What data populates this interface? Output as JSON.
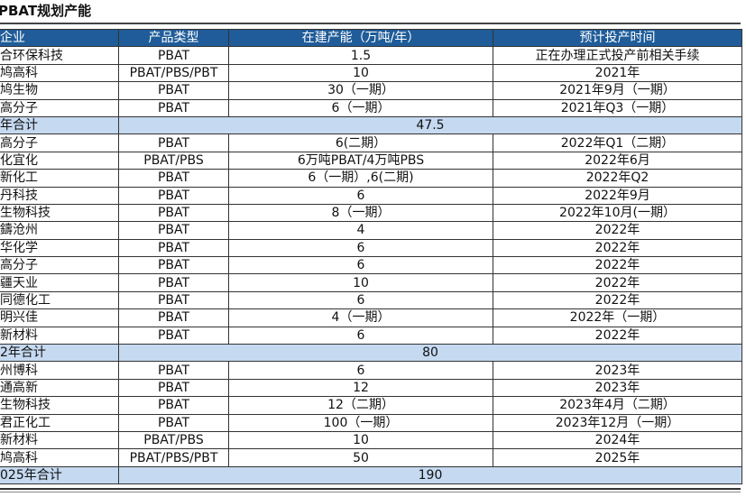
{
  "title": "PBAT规划产能",
  "headers": [
    "企业",
    "产品类型",
    "在建产能（万吨/年）",
    "预计投产时间"
  ],
  "rows": [
    {
      "company": "合环保科技",
      "type": "PBAT",
      "capacity": "1.5",
      "time": "正在办理正式投产前相关手续"
    },
    {
      "company": "鸠高科",
      "type": "PBAT/PBS/PBT",
      "capacity": "10",
      "time": "2021年"
    },
    {
      "company": "鸠生物",
      "type": "PBAT",
      "capacity": "30（一期）",
      "time": "2021年9月（一期）"
    },
    {
      "company": "高分子",
      "type": "PBAT",
      "capacity": "6（一期）",
      "time": "2021年Q3（一期）"
    },
    {
      "subtotal": true,
      "company": "年合计",
      "capacity": "47.5"
    },
    {
      "company": "高分子",
      "type": "PBAT",
      "capacity": "6(二期）",
      "time": "2022年Q1（二期）"
    },
    {
      "company": "化宜化",
      "type": "PBAT/PBS",
      "capacity": "6万吨PBAT/4万吨PBS",
      "time": "2022年6月"
    },
    {
      "company": "新化工",
      "type": "PBAT",
      "capacity": "6（一期）,6(二期)",
      "time": "2022年Q2"
    },
    {
      "company": "丹科技",
      "type": "PBAT",
      "capacity": "6",
      "time": "2022年9月"
    },
    {
      "company": "生物科技",
      "type": "PBAT",
      "capacity": "8（一期）",
      "time": "2022年10月(一期）"
    },
    {
      "company": "鑄沧州",
      "type": "PBAT",
      "capacity": "4",
      "time": "2022年"
    },
    {
      "company": "华化学",
      "type": "PBAT",
      "capacity": "6",
      "time": "2022年"
    },
    {
      "company": "高分子",
      "type": "PBAT",
      "capacity": "6",
      "time": "2022年"
    },
    {
      "company": "疆天业",
      "type": "PBAT",
      "capacity": "10",
      "time": "2022年"
    },
    {
      "company": "同德化工",
      "type": "PBAT",
      "capacity": "6",
      "time": "2022年"
    },
    {
      "company": "明兴佳",
      "type": "PBAT",
      "capacity": "4（一期）",
      "time": "2022年（一期）"
    },
    {
      "company": "新材料",
      "type": "PBAT",
      "capacity": "6",
      "time": "2022年"
    },
    {
      "subtotal": true,
      "company": "2年合计",
      "capacity": "80"
    },
    {
      "company": "州博科",
      "type": "PBAT",
      "capacity": "6",
      "time": "2023年"
    },
    {
      "company": "通高新",
      "type": "PBAT",
      "capacity": "12",
      "time": "2023年"
    },
    {
      "company": "生物科技",
      "type": "PBAT",
      "capacity": "12（二期）",
      "time": "2023年4月（二期）"
    },
    {
      "company": "君正化工",
      "type": "PBAT",
      "capacity": "100（一期）",
      "time": "2023年12月（一期）"
    },
    {
      "company": "新材料",
      "type": "PBAT/PBS",
      "capacity": "10",
      "time": "2024年"
    },
    {
      "company": "鸠高科",
      "type": "PBAT/PBS/PBT",
      "capacity": "50",
      "time": "2025年"
    },
    {
      "subtotal": true,
      "company": "025年合计",
      "capacity": "190"
    }
  ]
}
